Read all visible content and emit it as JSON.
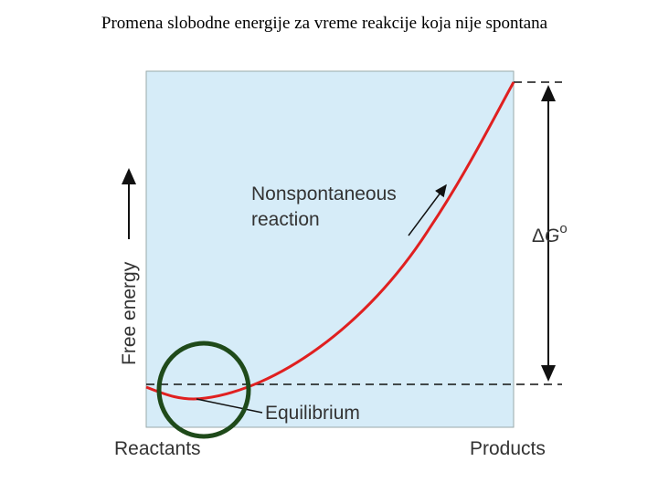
{
  "header": {
    "title": "Promena slobodne energije za vreme reakcije koja nije spontana"
  },
  "diagram": {
    "y_axis_label": "Free energy",
    "x_start_label": "Reactants",
    "x_end_label": "Products",
    "curve_label": [
      "Nonspontaneous",
      "reaction"
    ],
    "equilibrium_label": "Equilibrium",
    "delta_g": {
      "symbol": "Δ",
      "variable": "G",
      "superscript": "o"
    }
  }
}
